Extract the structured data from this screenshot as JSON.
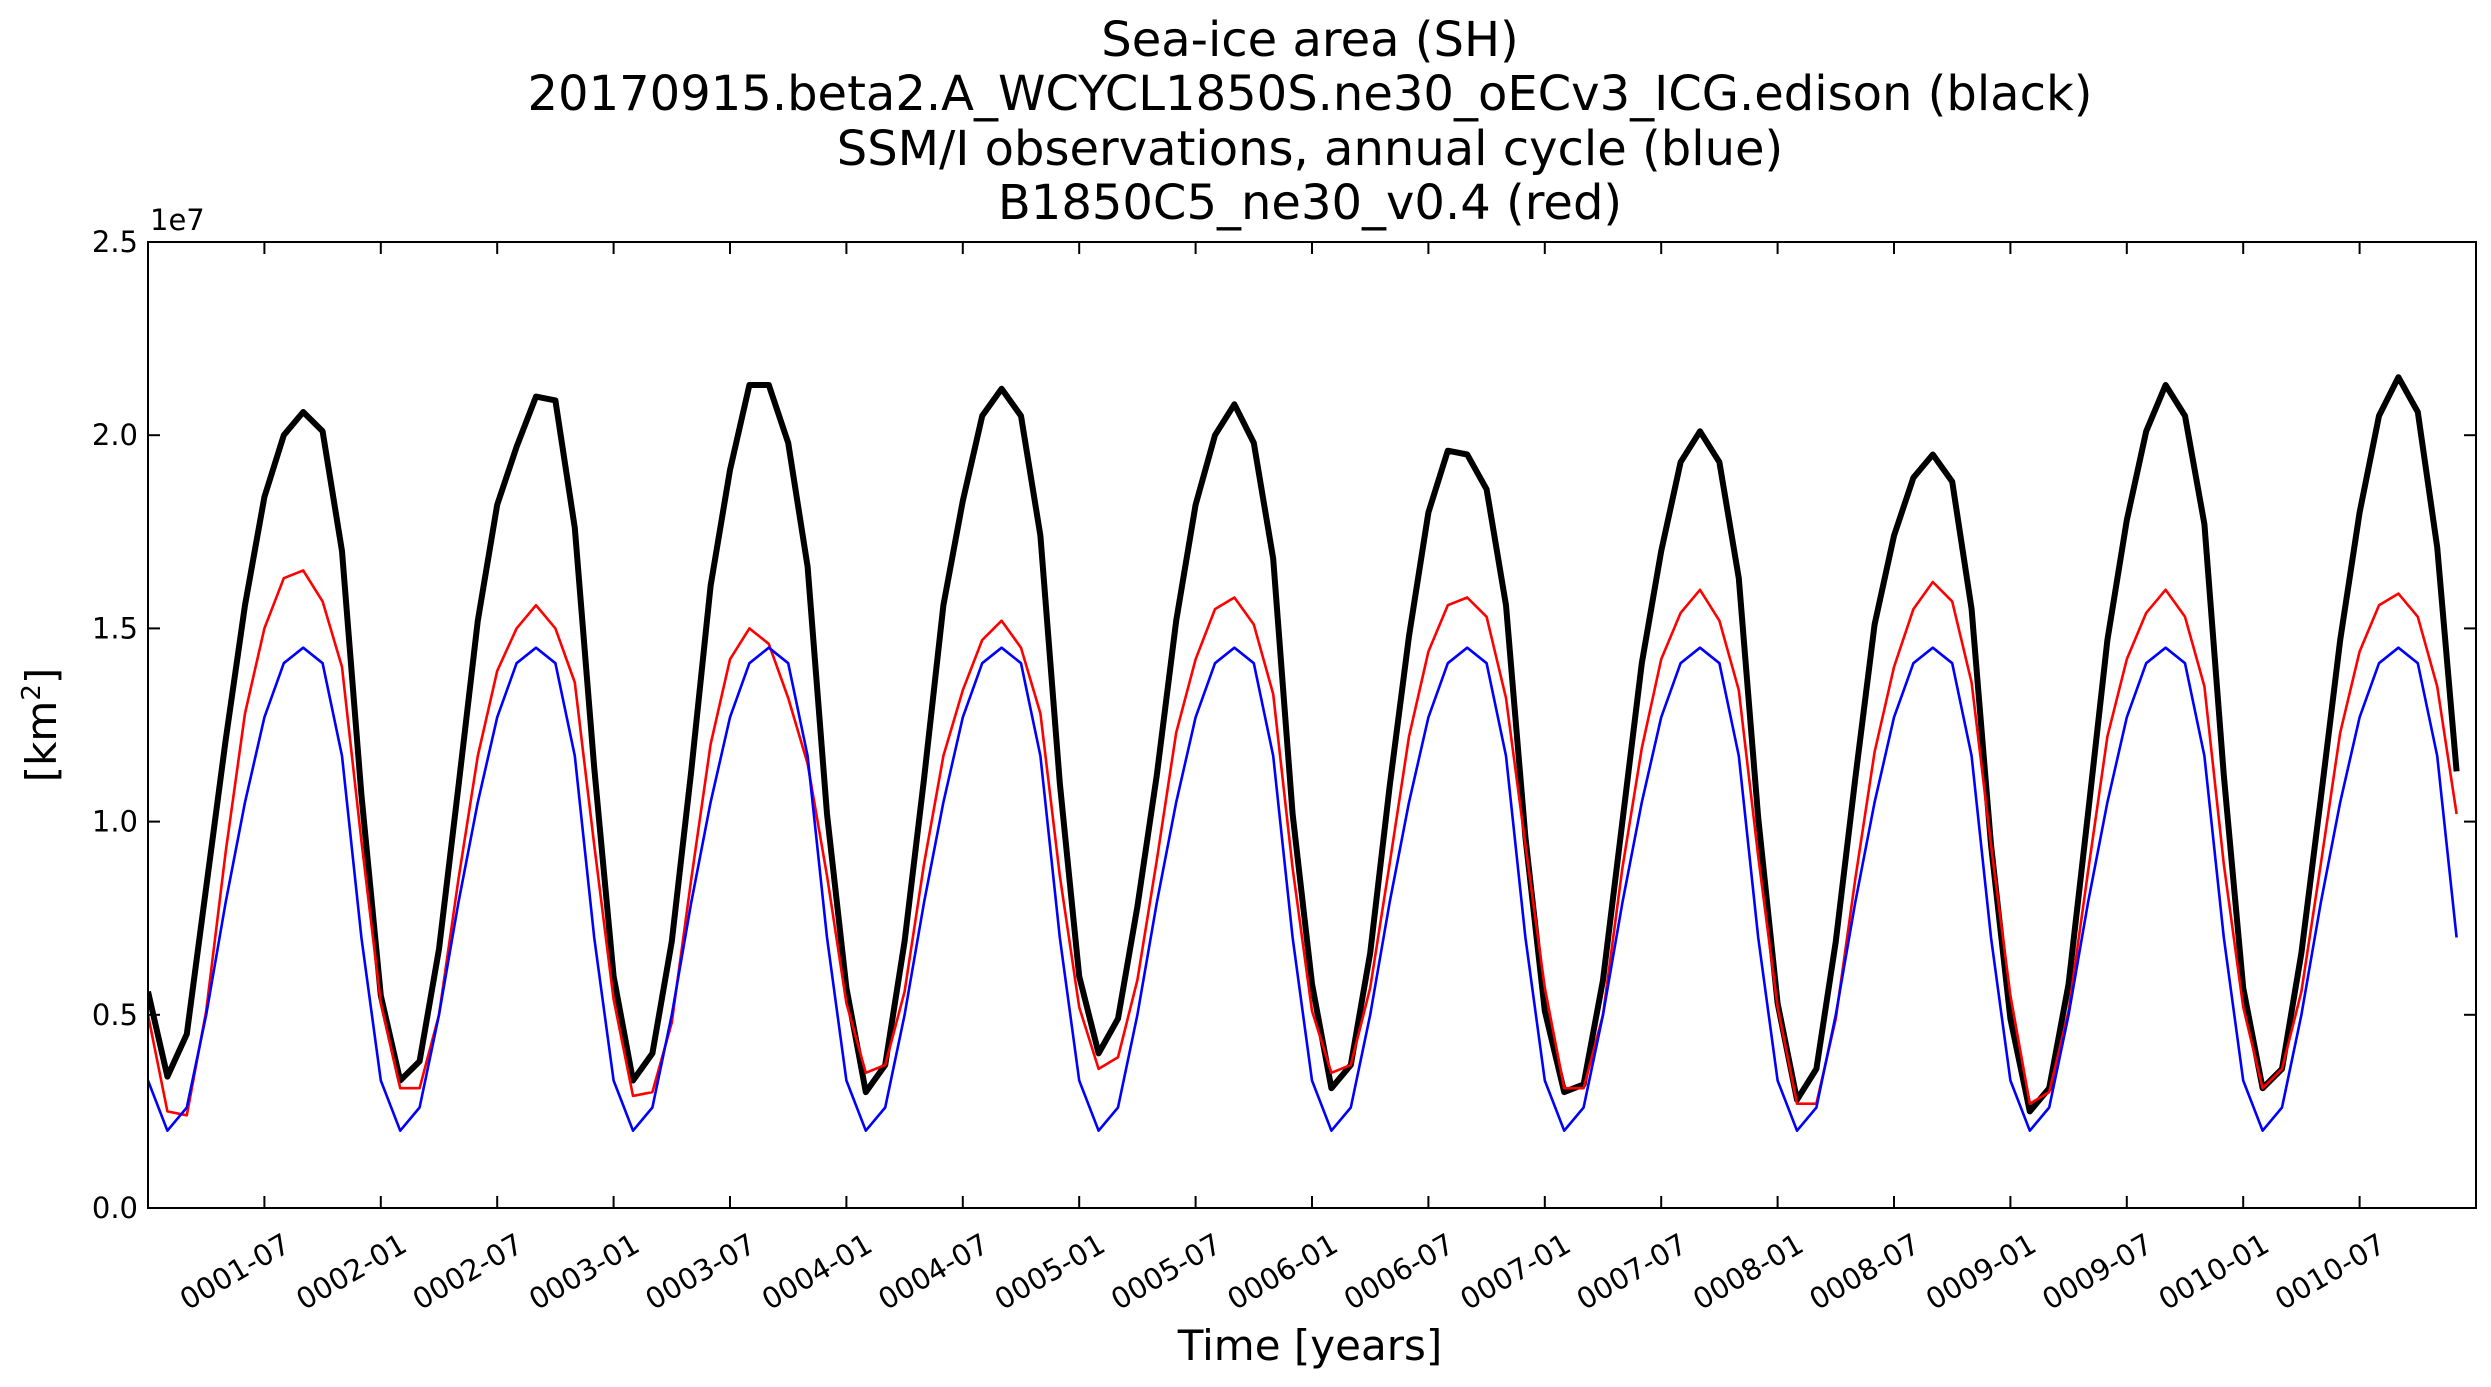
{
  "chart_data": {
    "type": "line",
    "title": [
      "Sea-ice area (SH)",
      "20170915.beta2.A_WCYCL1850S.ne30_oECv3_ICG.edison (black)",
      "SSM/I observations, annual cycle (blue)",
      "B1850C5_ne30_v0.4 (red)"
    ],
    "xlabel": "Time [years]",
    "ylabel": "[km",
    "ylabel_sup": "2",
    "ylabel_end": "]",
    "y_offset_label": "1e7",
    "ylim": [
      0,
      25000000
    ],
    "xlim_months": [
      0,
      120
    ],
    "x_start": "0001-01",
    "x_step": "1 month",
    "yticks": [
      {
        "value": 0,
        "label": "0.0"
      },
      {
        "value": 5000000,
        "label": "0.5"
      },
      {
        "value": 10000000,
        "label": "1.0"
      },
      {
        "value": 15000000,
        "label": "1.5"
      },
      {
        "value": 20000000,
        "label": "2.0"
      },
      {
        "value": 25000000,
        "label": "2.5"
      }
    ],
    "xticks": [
      {
        "month": 6,
        "label": "0001-07"
      },
      {
        "month": 12,
        "label": "0002-01"
      },
      {
        "month": 18,
        "label": "0002-07"
      },
      {
        "month": 24,
        "label": "0003-01"
      },
      {
        "month": 30,
        "label": "0003-07"
      },
      {
        "month": 36,
        "label": "0004-01"
      },
      {
        "month": 42,
        "label": "0004-07"
      },
      {
        "month": 48,
        "label": "0005-01"
      },
      {
        "month": 54,
        "label": "0005-07"
      },
      {
        "month": 60,
        "label": "0006-01"
      },
      {
        "month": 66,
        "label": "0006-07"
      },
      {
        "month": 72,
        "label": "0007-01"
      },
      {
        "month": 78,
        "label": "0007-07"
      },
      {
        "month": 84,
        "label": "0008-01"
      },
      {
        "month": 90,
        "label": "0008-07"
      },
      {
        "month": 96,
        "label": "0009-01"
      },
      {
        "month": 102,
        "label": "0009-07"
      },
      {
        "month": 108,
        "label": "0010-01"
      },
      {
        "month": 114,
        "label": "0010-07"
      }
    ],
    "series": [
      {
        "color": "#000000",
        "values": [
          5600000,
          3400000,
          4500000,
          8300000,
          12100000,
          15600000,
          18400000,
          20000000,
          20600000,
          20100000,
          17000000,
          10700000,
          5500000,
          3300000,
          3800000,
          6700000,
          10900000,
          15200000,
          18200000,
          19700000,
          21000000,
          20900000,
          17600000,
          11400000,
          6000000,
          3300000,
          4000000,
          6900000,
          11300000,
          16100000,
          19100000,
          21300000,
          21300000,
          19800000,
          16600000,
          10200000,
          5700000,
          3000000,
          3700000,
          6900000,
          11100000,
          15600000,
          18300000,
          20500000,
          21200000,
          20500000,
          17400000,
          11000000,
          6000000,
          4000000,
          4900000,
          7800000,
          11200000,
          15200000,
          18200000,
          20000000,
          20800000,
          19800000,
          16800000,
          10200000,
          5800000,
          3100000,
          3700000,
          6600000,
          10900000,
          14800000,
          18000000,
          19600000,
          19500000,
          18600000,
          15600000,
          9600000,
          5100000,
          3000000,
          3200000,
          5900000,
          10000000,
          14100000,
          17000000,
          19300000,
          20100000,
          19300000,
          16300000,
          10100000,
          5300000,
          2800000,
          3600000,
          6900000,
          11100000,
          15100000,
          17400000,
          18900000,
          19500000,
          18800000,
          15500000,
          9400000,
          4900000,
          2500000,
          3100000,
          5800000,
          10200000,
          14700000,
          17800000,
          20100000,
          21300000,
          20500000,
          17700000,
          11200000,
          5700000,
          3100000,
          3600000,
          6600000,
          10600000,
          14700000,
          18000000,
          20500000,
          21500000,
          20600000,
          17100000,
          11300000
        ]
      },
      {
        "color": "#ff0000",
        "values": [
          5000000,
          2500000,
          2400000,
          5100000,
          9200000,
          12800000,
          15000000,
          16300000,
          16500000,
          15700000,
          14000000,
          9500000,
          5300000,
          3100000,
          3100000,
          5000000,
          8500000,
          11700000,
          13900000,
          15000000,
          15600000,
          15000000,
          13600000,
          9400000,
          5400000,
          2900000,
          3000000,
          4800000,
          8500000,
          12000000,
          14200000,
          15000000,
          14600000,
          13200000,
          11500000,
          8600000,
          5300000,
          3500000,
          3700000,
          5600000,
          8900000,
          11700000,
          13400000,
          14700000,
          15200000,
          14500000,
          12800000,
          8600000,
          5200000,
          3600000,
          3900000,
          5900000,
          9000000,
          12300000,
          14200000,
          15500000,
          15800000,
          15100000,
          13300000,
          8800000,
          5100000,
          3500000,
          3700000,
          5700000,
          8900000,
          12200000,
          14400000,
          15600000,
          15800000,
          15300000,
          13200000,
          9400000,
          5700000,
          3100000,
          3100000,
          5000000,
          8800000,
          11900000,
          14200000,
          15400000,
          16000000,
          15200000,
          13400000,
          9100000,
          5200000,
          2700000,
          2700000,
          4900000,
          8500000,
          11800000,
          14000000,
          15500000,
          16200000,
          15700000,
          13600000,
          9400000,
          5500000,
          2700000,
          3000000,
          5100000,
          8700000,
          12200000,
          14200000,
          15400000,
          16000000,
          15300000,
          13500000,
          8900000,
          5200000,
          3100000,
          3600000,
          5600000,
          8900000,
          12300000,
          14400000,
          15600000,
          15900000,
          15300000,
          13500000,
          10200000
        ]
      },
      {
        "color": "#0000ff",
        "values": [
          3300000,
          2000000,
          2600000,
          5000000,
          7900000,
          10500000,
          12700000,
          14100000,
          14500000,
          14100000,
          11700000,
          7000000,
          3300000,
          2000000,
          2600000,
          5000000,
          7900000,
          10500000,
          12700000,
          14100000,
          14500000,
          14100000,
          11700000,
          7000000,
          3300000,
          2000000,
          2600000,
          5000000,
          7900000,
          10500000,
          12700000,
          14100000,
          14500000,
          14100000,
          11700000,
          7000000,
          3300000,
          2000000,
          2600000,
          5000000,
          7900000,
          10500000,
          12700000,
          14100000,
          14500000,
          14100000,
          11700000,
          7000000,
          3300000,
          2000000,
          2600000,
          5000000,
          7900000,
          10500000,
          12700000,
          14100000,
          14500000,
          14100000,
          11700000,
          7000000,
          3300000,
          2000000,
          2600000,
          5000000,
          7900000,
          10500000,
          12700000,
          14100000,
          14500000,
          14100000,
          11700000,
          7000000,
          3300000,
          2000000,
          2600000,
          5000000,
          7900000,
          10500000,
          12700000,
          14100000,
          14500000,
          14100000,
          11700000,
          7000000,
          3300000,
          2000000,
          2600000,
          5000000,
          7900000,
          10500000,
          12700000,
          14100000,
          14500000,
          14100000,
          11700000,
          7000000,
          3300000,
          2000000,
          2600000,
          5000000,
          7900000,
          10500000,
          12700000,
          14100000,
          14500000,
          14100000,
          11700000,
          7000000,
          3300000,
          2000000,
          2600000,
          5000000,
          7900000,
          10500000,
          12700000,
          14100000,
          14500000,
          14100000,
          11700000,
          7000000
        ]
      }
    ],
    "grid": false,
    "legend": "none"
  }
}
